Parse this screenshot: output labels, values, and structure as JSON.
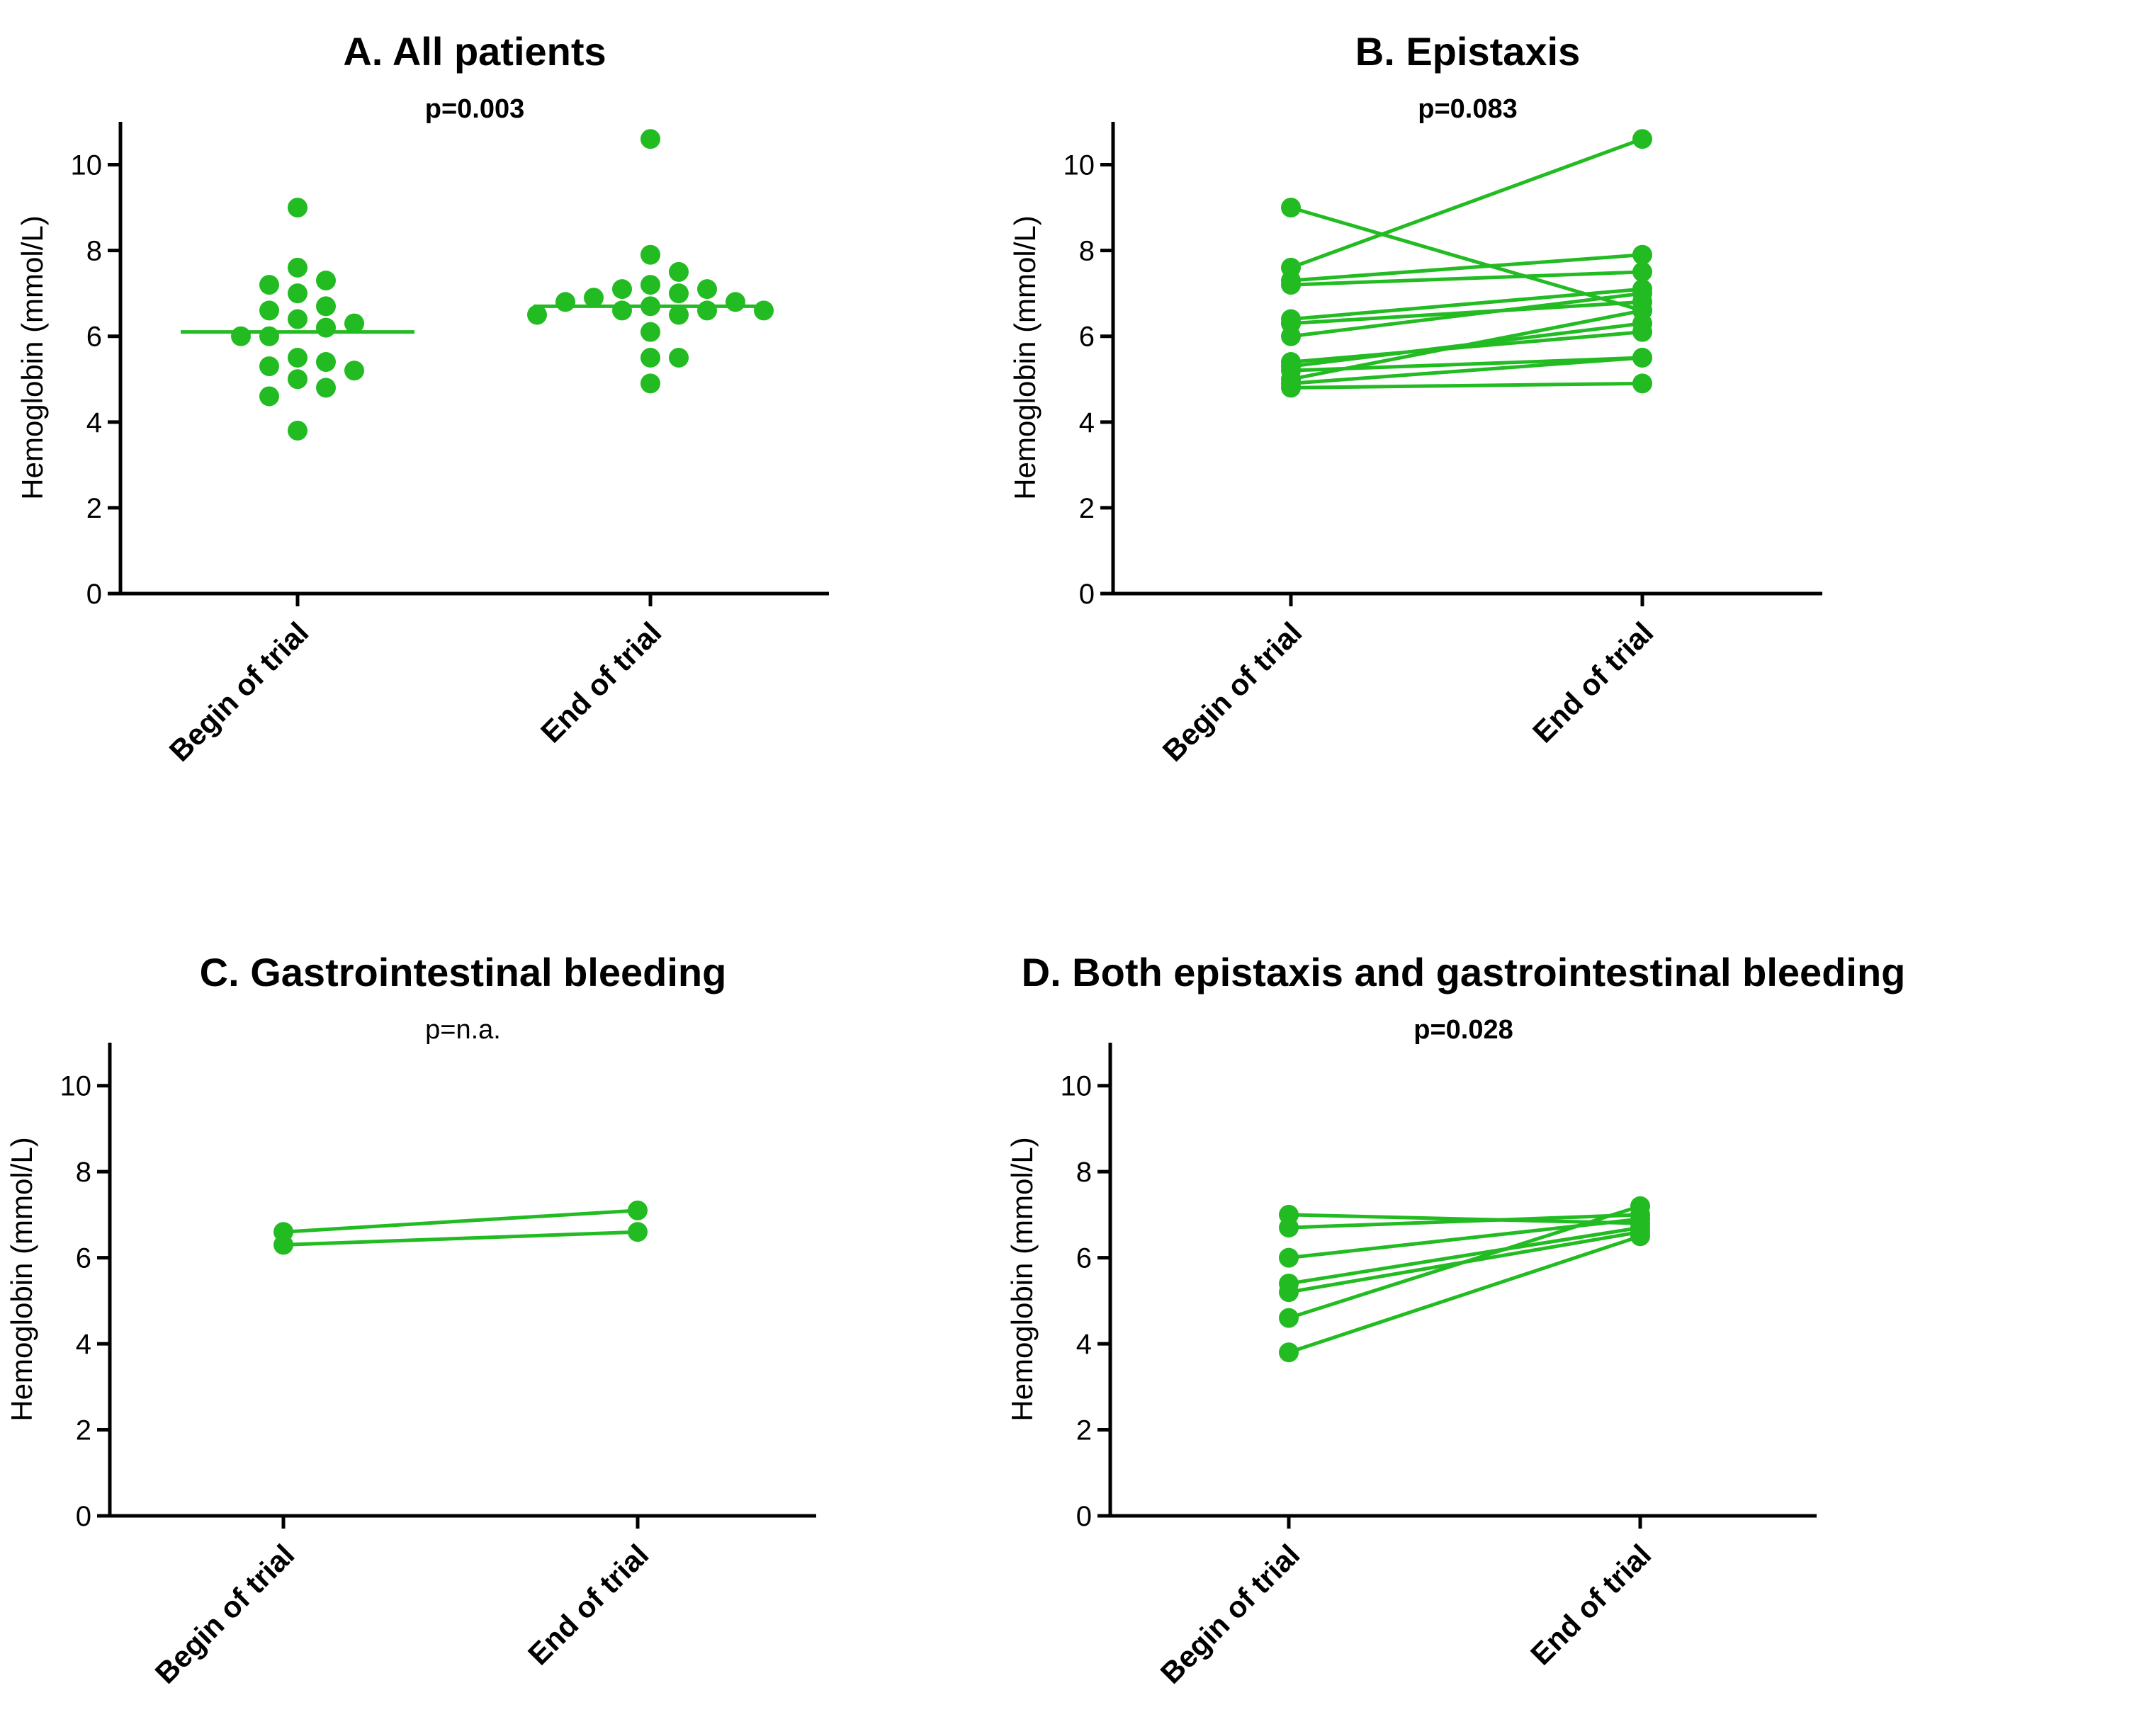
{
  "chart_data": [
    {
      "id": "A",
      "type": "scatter",
      "title": "A. All patients",
      "pvalue": "p=0.003",
      "ylabel": "Hemoglobin (mmol/L)",
      "ylim": [
        0,
        11
      ],
      "yticks": [
        0,
        2,
        4,
        6,
        8,
        10
      ],
      "categories": [
        "Begin of trial",
        "End of trial"
      ],
      "color": "#22bb22",
      "groups": [
        {
          "category": "Begin of trial",
          "mean": 6.1,
          "values": [
            9.0,
            7.6,
            7.3,
            7.2,
            7.0,
            6.7,
            6.6,
            6.4,
            6.3,
            6.2,
            6.0,
            6.0,
            5.5,
            5.4,
            5.3,
            5.2,
            5.0,
            4.8,
            4.6,
            3.8
          ]
        },
        {
          "category": "End of trial",
          "mean": 6.7,
          "values": [
            10.6,
            7.9,
            7.5,
            7.2,
            7.1,
            7.1,
            7.0,
            6.9,
            6.8,
            6.8,
            6.7,
            6.6,
            6.6,
            6.6,
            6.5,
            6.5,
            6.1,
            5.5,
            5.5,
            4.9
          ]
        }
      ]
    },
    {
      "id": "B",
      "type": "line",
      "title": "B. Epistaxis",
      "pvalue": "p=0.083",
      "ylabel": "Hemoglobin (mmol/L)",
      "ylim": [
        0,
        11
      ],
      "yticks": [
        0,
        2,
        4,
        6,
        8,
        10
      ],
      "categories": [
        "Begin of trial",
        "End of trial"
      ],
      "color": "#22bb22",
      "pairs": [
        [
          9.0,
          6.6
        ],
        [
          7.6,
          10.6
        ],
        [
          7.3,
          7.9
        ],
        [
          7.2,
          7.5
        ],
        [
          6.4,
          7.1
        ],
        [
          6.3,
          6.8
        ],
        [
          6.0,
          7.0
        ],
        [
          5.4,
          6.1
        ],
        [
          5.3,
          6.3
        ],
        [
          5.0,
          6.6
        ],
        [
          5.2,
          5.5
        ],
        [
          4.9,
          5.5
        ],
        [
          4.8,
          4.9
        ]
      ]
    },
    {
      "id": "C",
      "type": "line",
      "title": "C. Gastrointestinal bleeding",
      "pvalue": "p=n.a.",
      "ylabel": "Hemoglobin (mmol/L)",
      "ylim": [
        0,
        11
      ],
      "yticks": [
        0,
        2,
        4,
        6,
        8,
        10
      ],
      "categories": [
        "Begin of trial",
        "End of trial"
      ],
      "color": "#22bb22",
      "pairs": [
        [
          6.6,
          7.1
        ],
        [
          6.3,
          6.6
        ]
      ]
    },
    {
      "id": "D",
      "type": "line",
      "title": "D. Both epistaxis and gastrointestinal bleeding",
      "pvalue": "p=0.028",
      "ylabel": "Hemoglobin (mmol/L)",
      "ylim": [
        0,
        11
      ],
      "yticks": [
        0,
        2,
        4,
        6,
        8,
        10
      ],
      "categories": [
        "Begin of trial",
        "End of trial"
      ],
      "color": "#22bb22",
      "pairs": [
        [
          7.0,
          6.8
        ],
        [
          6.7,
          7.0
        ],
        [
          6.0,
          6.9
        ],
        [
          5.4,
          6.7
        ],
        [
          5.2,
          6.6
        ],
        [
          4.6,
          7.2
        ],
        [
          3.8,
          6.5
        ]
      ]
    }
  ]
}
